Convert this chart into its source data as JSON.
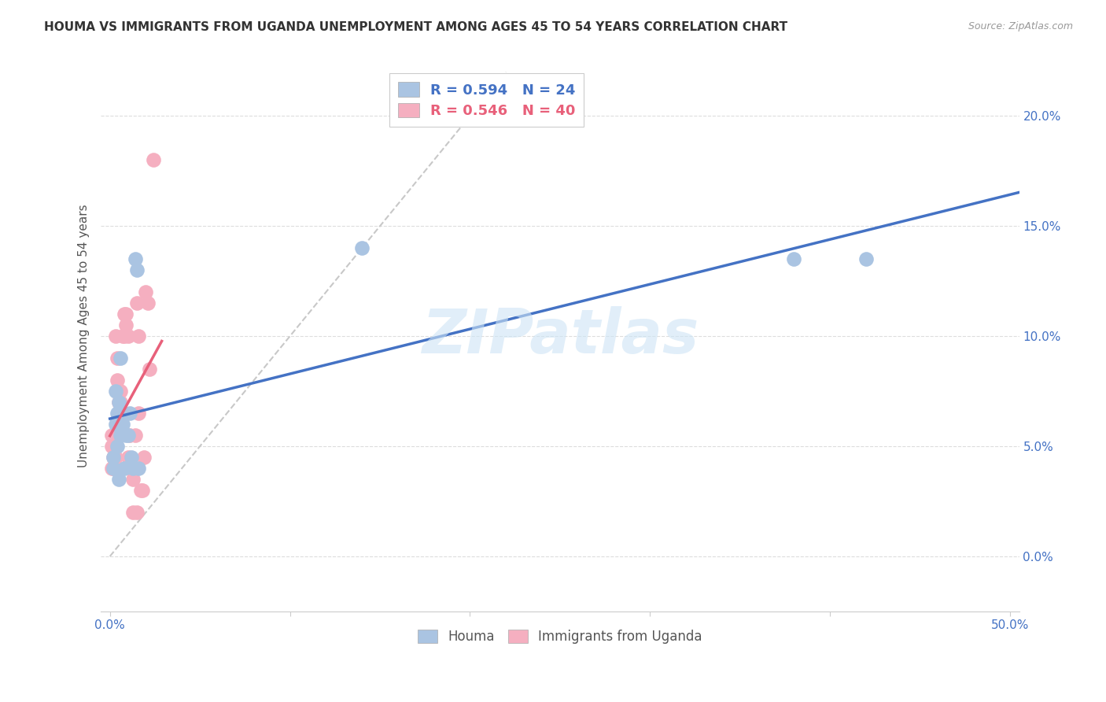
{
  "title": "HOUMA VS IMMIGRANTS FROM UGANDA UNEMPLOYMENT AMONG AGES 45 TO 54 YEARS CORRELATION CHART",
  "source": "Source: ZipAtlas.com",
  "ylabel": "Unemployment Among Ages 45 to 54 years",
  "xlim": [
    -0.005,
    0.505
  ],
  "ylim": [
    -0.025,
    0.225
  ],
  "xticks": [
    0.0,
    0.1,
    0.2,
    0.3,
    0.4,
    0.5
  ],
  "xticklabels_ends": [
    "0.0%",
    "50.0%"
  ],
  "yticks": [
    0.0,
    0.05,
    0.1,
    0.15,
    0.2
  ],
  "yticklabels": [
    "0.0%",
    "5.0%",
    "10.0%",
    "15.0%",
    "20.0%"
  ],
  "houma_color": "#aac4e2",
  "uganda_color": "#f5afc0",
  "houma_line_color": "#4472c4",
  "uganda_line_color": "#e8607a",
  "diagonal_color": "#c8c8c8",
  "legend_R_houma": "R = 0.594",
  "legend_N_houma": "N = 24",
  "legend_R_uganda": "R = 0.546",
  "legend_N_uganda": "N = 40",
  "houma_x": [
    0.002,
    0.002,
    0.003,
    0.003,
    0.004,
    0.004,
    0.005,
    0.005,
    0.006,
    0.006,
    0.007,
    0.007,
    0.008,
    0.009,
    0.01,
    0.011,
    0.012,
    0.013,
    0.014,
    0.015,
    0.016,
    0.38,
    0.42,
    0.14
  ],
  "houma_y": [
    0.04,
    0.045,
    0.06,
    0.075,
    0.05,
    0.065,
    0.035,
    0.07,
    0.055,
    0.09,
    0.06,
    0.065,
    0.04,
    0.055,
    0.055,
    0.065,
    0.045,
    0.04,
    0.135,
    0.13,
    0.04,
    0.135,
    0.135,
    0.14
  ],
  "uganda_x": [
    0.001,
    0.001,
    0.001,
    0.002,
    0.002,
    0.002,
    0.003,
    0.003,
    0.003,
    0.003,
    0.004,
    0.004,
    0.005,
    0.005,
    0.006,
    0.006,
    0.007,
    0.008,
    0.008,
    0.009,
    0.009,
    0.01,
    0.01,
    0.011,
    0.012,
    0.013,
    0.013,
    0.014,
    0.014,
    0.015,
    0.015,
    0.016,
    0.016,
    0.017,
    0.018,
    0.019,
    0.02,
    0.021,
    0.022,
    0.024
  ],
  "uganda_y": [
    0.04,
    0.05,
    0.055,
    0.04,
    0.045,
    0.05,
    0.04,
    0.04,
    0.045,
    0.1,
    0.08,
    0.09,
    0.065,
    0.07,
    0.07,
    0.075,
    0.1,
    0.11,
    0.1,
    0.105,
    0.11,
    0.045,
    0.1,
    0.055,
    0.04,
    0.02,
    0.035,
    0.04,
    0.055,
    0.02,
    0.115,
    0.1,
    0.065,
    0.03,
    0.03,
    0.045,
    0.12,
    0.115,
    0.085,
    0.18
  ],
  "watermark": "ZIPatlas",
  "background_color": "#ffffff",
  "grid_color": "#dddddd",
  "tick_color": "#4472c4"
}
